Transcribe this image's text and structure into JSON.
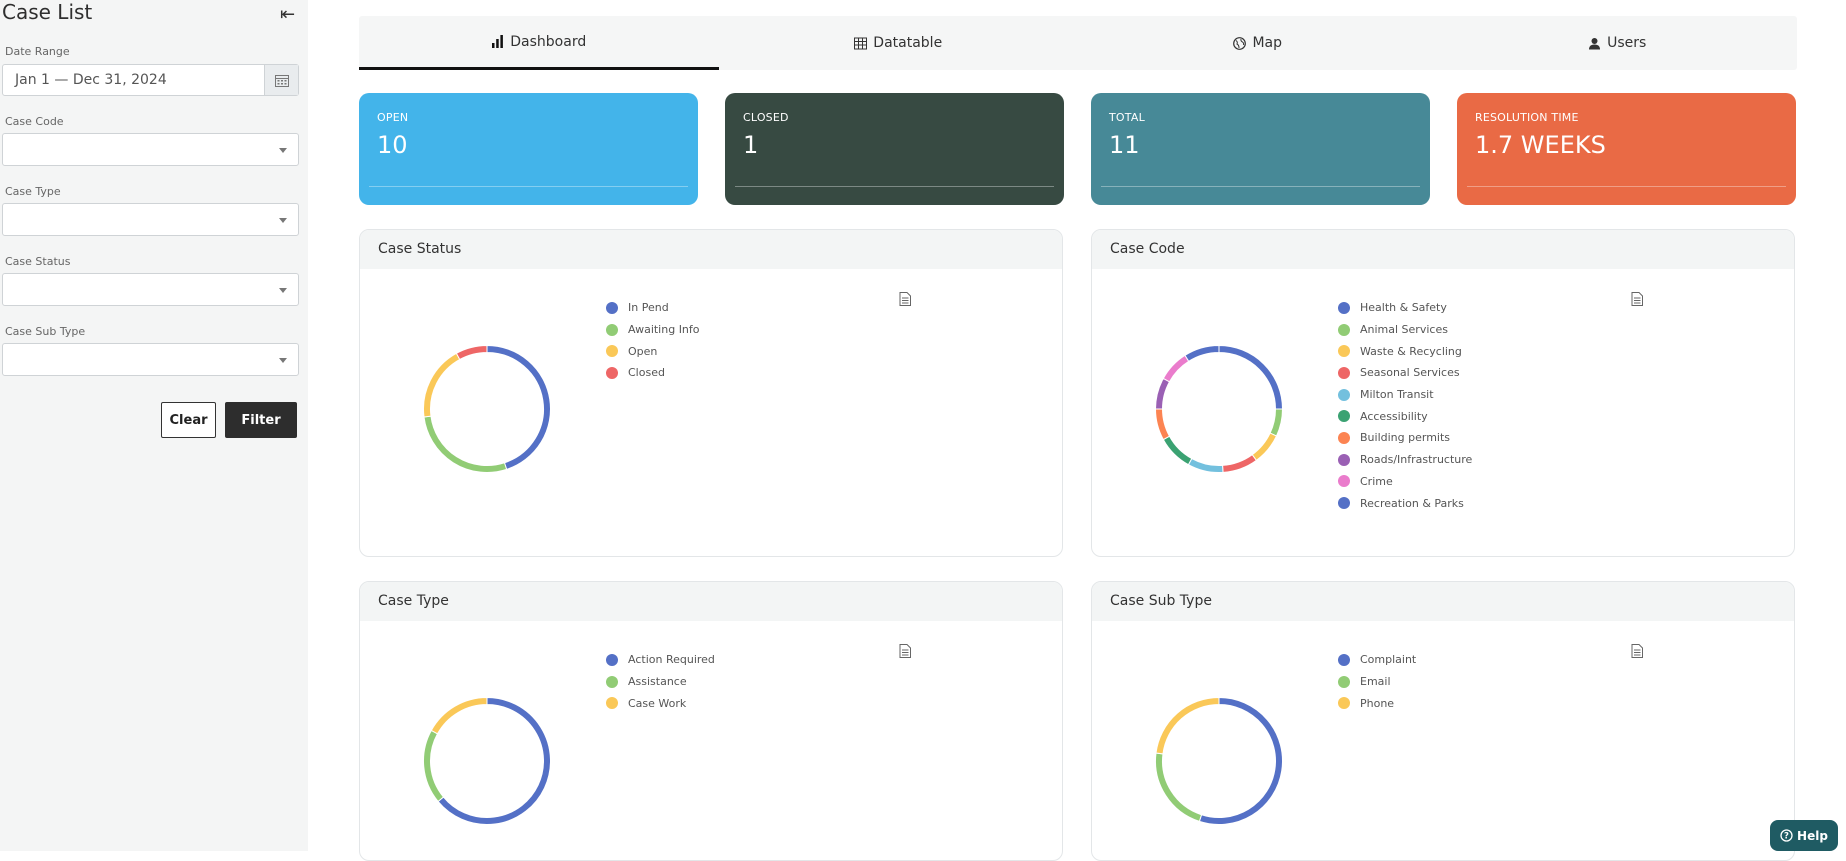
{
  "sidebar": {
    "title": "Case List",
    "date_range": {
      "label": "Date Range",
      "value": "Jan 1 — Dec 31, 2024"
    },
    "filters": [
      {
        "label": "Case Code",
        "value": ""
      },
      {
        "label": "Case Type",
        "value": ""
      },
      {
        "label": "Case Status",
        "value": ""
      },
      {
        "label": "Case Sub Type",
        "value": ""
      }
    ],
    "clear_label": "Clear",
    "filter_label": "Filter"
  },
  "tabs": [
    {
      "label": "Dashboard",
      "icon": "bar-chart-icon",
      "active": true
    },
    {
      "label": "Datatable",
      "icon": "table-icon",
      "active": false
    },
    {
      "label": "Map",
      "icon": "globe-icon",
      "active": false
    },
    {
      "label": "Users",
      "icon": "user-icon",
      "active": false
    }
  ],
  "stats": [
    {
      "label": "OPEN",
      "value": "10",
      "color": "#43b4ea"
    },
    {
      "label": "CLOSED",
      "value": "1",
      "color": "#374a42"
    },
    {
      "label": "TOTAL",
      "value": "11",
      "color": "#478997"
    },
    {
      "label": "RESOLUTION TIME",
      "value": "1.7 WEEKS",
      "color": "#e96a45"
    }
  ],
  "chart_data": [
    {
      "type": "pie",
      "title": "Case Status",
      "categories": [
        "In Pend",
        "Awaiting Info",
        "Open",
        "Closed"
      ],
      "values": [
        45,
        28,
        19,
        8
      ],
      "colors": [
        "#5470c6",
        "#91cc75",
        "#fac858",
        "#ee6666"
      ]
    },
    {
      "type": "pie",
      "title": "Case Code",
      "categories": [
        "Health & Safety",
        "Animal Services",
        "Waste & Recycling",
        "Seasonal Services",
        "Milton Transit",
        "Accessibility",
        "Building permits",
        "Roads/Infrastructure",
        "Crime",
        "Recreation & Parks"
      ],
      "values": [
        25,
        7,
        8,
        9,
        9,
        9,
        8,
        8,
        8,
        9
      ],
      "colors": [
        "#5470c6",
        "#91cc75",
        "#fac858",
        "#ee6666",
        "#73c0de",
        "#3ba272",
        "#fc8452",
        "#9a60b4",
        "#ea7ccc",
        "#5470c6"
      ]
    },
    {
      "type": "pie",
      "title": "Case Type",
      "categories": [
        "Action Required",
        "Assistance",
        "Case Work"
      ],
      "values": [
        64,
        19,
        17
      ],
      "colors": [
        "#5470c6",
        "#91cc75",
        "#fac858"
      ]
    },
    {
      "type": "pie",
      "title": "Case Sub Type",
      "categories": [
        "Complaint",
        "Email",
        "Phone"
      ],
      "values": [
        55,
        22,
        23
      ],
      "colors": [
        "#5470c6",
        "#91cc75",
        "#fac858"
      ]
    }
  ],
  "help_label": "Help"
}
